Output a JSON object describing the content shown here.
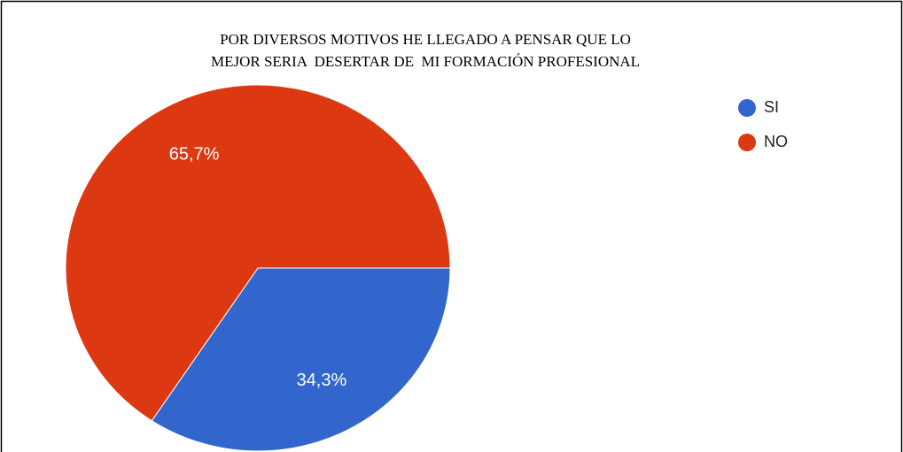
{
  "chart_data": {
    "type": "pie",
    "title": [
      "POR DIVERSOS MOTIVOS HE LLEGADO A PENSAR QUE LO",
      "MEJOR SERIA  DESERTAR DE  MI FORMACIÓN PROFESIONAL"
    ],
    "categories": [
      "SI",
      "NO"
    ],
    "values": [
      34.3,
      65.7
    ],
    "value_labels": [
      "34,3%",
      "65,7%"
    ],
    "colors": [
      "#3366cc",
      "#dc3912"
    ],
    "legend": "right"
  }
}
